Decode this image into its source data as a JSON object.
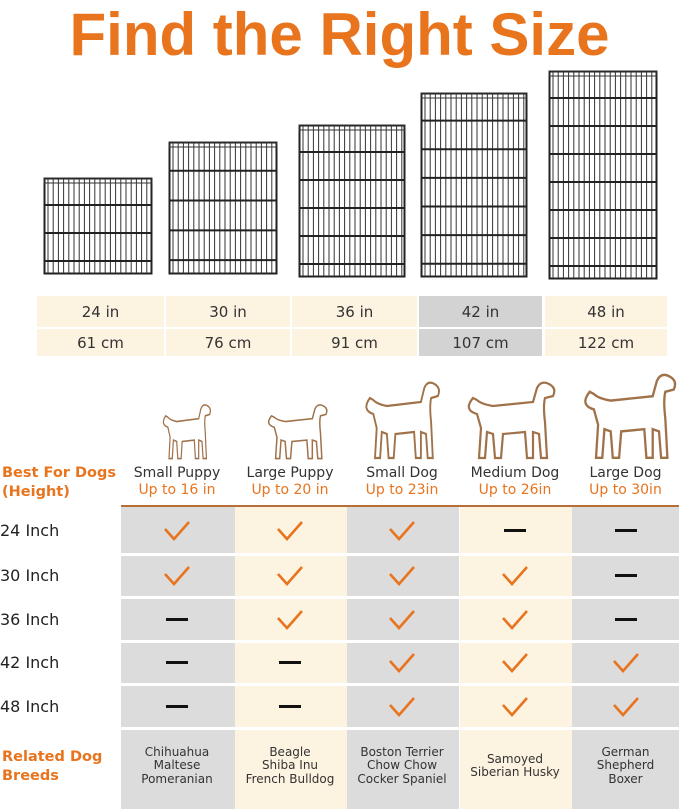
{
  "title": "Find the Right Size",
  "colors": {
    "accent": "#e8741e",
    "gray": "#dcdcdc",
    "cream": "#fdf3e1",
    "highlight": "#d3d3d3"
  },
  "sizes": [
    {
      "in": "24 in",
      "cm": "61 cm"
    },
    {
      "in": "30 in",
      "cm": "76 cm"
    },
    {
      "in": "36 in",
      "cm": "91 cm"
    },
    {
      "in": "42 in",
      "cm": "107 cm",
      "highlighted": true
    },
    {
      "in": "48 in",
      "cm": "122 cm"
    }
  ],
  "best_for_label": "Best For Dogs (Height)",
  "dog_types": [
    {
      "name": "Small Puppy",
      "height": "Up to 16 in",
      "breeds": [
        "Chihuahua",
        "Maltese",
        "Pomeranian"
      ]
    },
    {
      "name": "Large Puppy",
      "height": "Up to 20 in",
      "breeds": [
        "Beagle",
        "Shiba Inu",
        "French Bulldog"
      ]
    },
    {
      "name": "Small Dog",
      "height": "Up to 23in",
      "breeds": [
        "Boston Terrier",
        "Chow Chow",
        "Cocker Spaniel"
      ]
    },
    {
      "name": "Medium Dog",
      "height": "Up to 26in",
      "breeds": [
        "Samoyed",
        "Siberian Husky"
      ]
    },
    {
      "name": "Large Dog",
      "height": "Up to 30in",
      "breeds": [
        "German",
        "Shepherd",
        "Boxer"
      ]
    }
  ],
  "rows": [
    {
      "label": "24 Inch",
      "fits": [
        true,
        true,
        true,
        false,
        false
      ]
    },
    {
      "label": "30 Inch",
      "fits": [
        true,
        true,
        true,
        true,
        false
      ]
    },
    {
      "label": "36 Inch",
      "fits": [
        false,
        true,
        true,
        true,
        false
      ]
    },
    {
      "label": "42 Inch",
      "fits": [
        false,
        false,
        true,
        true,
        true
      ]
    },
    {
      "label": "48 Inch",
      "fits": [
        false,
        false,
        true,
        true,
        true
      ]
    }
  ],
  "breeds_label": "Related Dog Breeds",
  "icons": {
    "fit": "checkmark-icon",
    "nofit": "dash-icon",
    "pen": "wire-playpen-image",
    "dog": "dog-silhouette-icon"
  }
}
